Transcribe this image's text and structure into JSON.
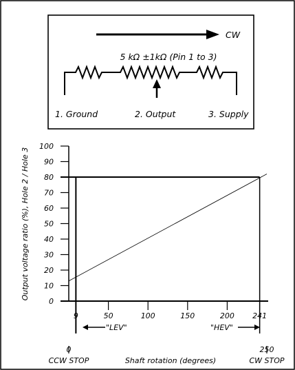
{
  "schematic": {
    "direction_label": "CW",
    "resistance_label": "5 kΩ ±1kΩ (Pin 1 to 3)",
    "pins": [
      "1. Ground",
      "2. Output",
      "3. Supply"
    ]
  },
  "chart": {
    "y_axis_label": "Output voltage ratio (%), Hole 2 / Hole 3",
    "x_axis_label": "Shaft rotation (degrees)",
    "y_ticks": [
      "0",
      "10",
      "20",
      "30",
      "40",
      "50",
      "60",
      "70",
      "80",
      "90",
      "100"
    ],
    "x_ticks": [
      "9",
      "50",
      "100",
      "150",
      "200",
      "241"
    ],
    "lev_label": "\"LEV\"",
    "hev_label": "\"HEV\"",
    "ccw_value": "0",
    "ccw_label": "CCW STOP",
    "cw_value": "250",
    "cw_label": "CW STOP"
  },
  "chart_data": {
    "type": "line",
    "xlabel": "Shaft rotation (degrees)",
    "ylabel": "Output voltage ratio (%), Hole 2 / Hole 3",
    "xlim": [
      0,
      250
    ],
    "ylim": [
      0,
      100
    ],
    "series": [
      {
        "x": [
          0,
          250
        ],
        "y": [
          13,
          82
        ]
      }
    ],
    "effective_range_x": [
      9,
      241
    ],
    "effective_range_y": [
      0,
      80
    ]
  }
}
